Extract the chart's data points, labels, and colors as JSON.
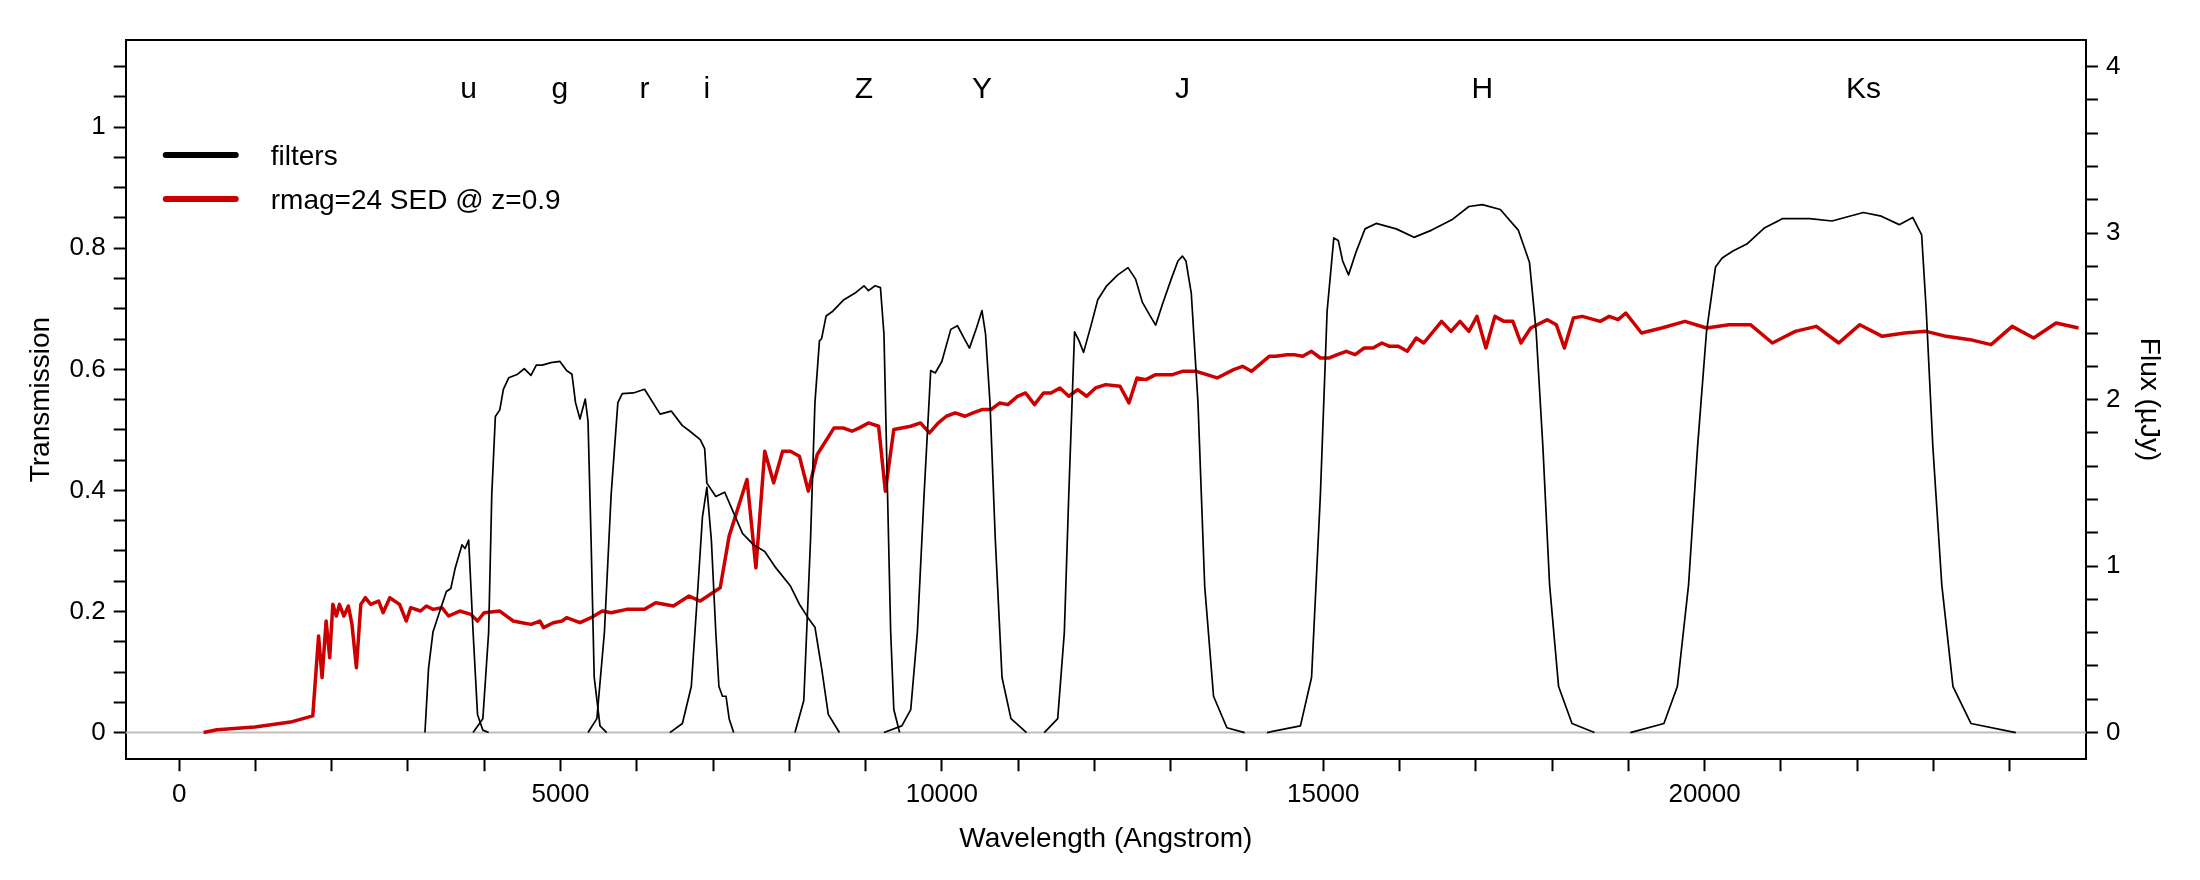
{
  "chart_data": {
    "type": "line",
    "xlabel": "Wavelength (Angstrom)",
    "ylabel": "Transmission",
    "y2label": "Flux (µJy)",
    "xlim": [
      -700,
      25000
    ],
    "xticks": [
      0,
      {
        "value": 1000,
        "label": null
      },
      {
        "value": 2000,
        "label": null
      },
      {
        "value": 3000,
        "label": null
      },
      {
        "value": 4000,
        "label": null
      },
      5000,
      {
        "value": 6000,
        "label": null
      },
      {
        "value": 7000,
        "label": null
      },
      {
        "value": 8000,
        "label": null
      },
      {
        "value": 9000,
        "label": null
      },
      10000,
      {
        "value": 11000,
        "label": null
      },
      {
        "value": 12000,
        "label": null
      },
      {
        "value": 13000,
        "label": null
      },
      {
        "value": 14000,
        "label": null
      },
      15000,
      {
        "value": 16000,
        "label": null
      },
      {
        "value": 17000,
        "label": null
      },
      {
        "value": 18000,
        "label": null
      },
      {
        "value": 19000,
        "label": null
      },
      20000,
      {
        "value": 21000,
        "label": null
      },
      {
        "value": 22000,
        "label": null
      },
      {
        "value": 23000,
        "label": null
      },
      {
        "value": 24000,
        "label": null
      }
    ],
    "ylim": [
      -0.044,
      1.144
    ],
    "yticks": [
      0,
      {
        "value": 0.05,
        "label": null
      },
      {
        "value": 0.1,
        "label": null
      },
      {
        "value": 0.15,
        "label": null
      },
      0.2,
      {
        "value": 0.25,
        "label": null
      },
      {
        "value": 0.3,
        "label": null
      },
      {
        "value": 0.35,
        "label": null
      },
      0.4,
      {
        "value": 0.45,
        "label": null
      },
      {
        "value": 0.5,
        "label": null
      },
      {
        "value": 0.55,
        "label": null
      },
      0.6,
      {
        "value": 0.65,
        "label": null
      },
      {
        "value": 0.7,
        "label": null
      },
      {
        "value": 0.75,
        "label": null
      },
      0.8,
      {
        "value": 0.85,
        "label": null
      },
      {
        "value": 0.9,
        "label": null
      },
      {
        "value": 0.95,
        "label": null
      },
      1,
      {
        "value": 1.05,
        "label": null
      },
      {
        "value": 1.1,
        "label": null
      }
    ],
    "y2lim": [
      -0.16,
      4.16
    ],
    "y2ticks": [
      0,
      {
        "value": 0.2,
        "label": null
      },
      {
        "value": 0.4,
        "label": null
      },
      {
        "value": 0.6,
        "label": null
      },
      {
        "value": 0.8,
        "label": null
      },
      1,
      {
        "value": 1.2,
        "label": null
      },
      {
        "value": 1.4,
        "label": null
      },
      {
        "value": 1.6,
        "label": null
      },
      {
        "value": 1.8,
        "label": null
      },
      2,
      {
        "value": 2.2,
        "label": null
      },
      {
        "value": 2.4,
        "label": null
      },
      {
        "value": 2.6,
        "label": null
      },
      {
        "value": 2.8,
        "label": null
      },
      3,
      {
        "value": 3.2,
        "label": null
      },
      {
        "value": 3.4,
        "label": null
      },
      {
        "value": 3.6,
        "label": null
      },
      {
        "value": 3.8,
        "label": null
      },
      4
    ],
    "legend": "top left",
    "ref_lines": [
      {
        "axis": "y",
        "value": 0,
        "color": "#bebebe"
      }
    ],
    "annotations": [
      "u",
      "g",
      "r",
      "i",
      "Z",
      "Y",
      "J",
      "H",
      "Ks"
    ],
    "series": [
      {
        "name": "filters",
        "color": "#000000",
        "x": [
          3223,
          3270,
          3328,
          3416,
          3504,
          3562,
          3620,
          3708,
          3749,
          3796,
          3854,
          3912,
          3982,
          4058
        ],
        "values": [
          0,
          0.106,
          0.166,
          0.2,
          0.233,
          0.238,
          0.272,
          0.31,
          0.304,
          0.318,
          0.166,
          0.03,
          0.004,
          0
        ]
      },
      {
        "color": "#000000",
        "x": [
          3854,
          3982,
          4058,
          4099,
          4146,
          4204,
          4251,
          4321,
          4438,
          4525,
          4613,
          4683,
          4759,
          4876,
          4993,
          5080,
          5150,
          5197,
          5255,
          5325,
          5361,
          5401,
          5442,
          5518,
          5606
        ],
        "values": [
          0,
          0.023,
          0.166,
          0.393,
          0.522,
          0.533,
          0.567,
          0.586,
          0.592,
          0.601,
          0.59,
          0.607,
          0.607,
          0.611,
          0.613,
          0.598,
          0.592,
          0.545,
          0.518,
          0.551,
          0.514,
          0.318,
          0.091,
          0.011,
          0
        ]
      },
      {
        "color": "#000000",
        "x": [
          5361,
          5477,
          5576,
          5664,
          5752,
          5810,
          5956,
          6102,
          6306,
          6452,
          6598,
          6685,
          6832,
          6890,
          6919,
          7036,
          7153,
          7270,
          7386,
          7532,
          7678,
          7824,
          8015,
          8132,
          8249,
          8336,
          8424,
          8511,
          8657
        ],
        "values": [
          0,
          0.023,
          0.166,
          0.393,
          0.545,
          0.56,
          0.561,
          0.567,
          0.526,
          0.531,
          0.507,
          0.499,
          0.484,
          0.469,
          0.412,
          0.39,
          0.397,
          0.363,
          0.329,
          0.31,
          0.299,
          0.272,
          0.242,
          0.212,
          0.189,
          0.174,
          0.106,
          0.03,
          0
        ]
      },
      {
        "color": "#000000",
        "x": [
          6434,
          6598,
          6715,
          6803,
          6861,
          6919,
          6978,
          7036,
          7077,
          7124,
          7170,
          7211,
          7270
        ],
        "values": [
          0,
          0.015,
          0.076,
          0.242,
          0.356,
          0.405,
          0.318,
          0.166,
          0.076,
          0.06,
          0.06,
          0.023,
          0
        ]
      },
      {
        "color": "#000000",
        "x": [
          8074,
          8190,
          8278,
          8336,
          8395,
          8424,
          8482,
          8570,
          8716,
          8862,
          8979,
          9037,
          9125,
          9195,
          9241,
          9288,
          9329,
          9370,
          9446
        ],
        "values": [
          0,
          0.053,
          0.318,
          0.545,
          0.647,
          0.651,
          0.688,
          0.696,
          0.715,
          0.726,
          0.738,
          0.73,
          0.738,
          0.735,
          0.658,
          0.393,
          0.166,
          0.038,
          0
        ]
      },
      {
        "color": "#000000",
        "x": [
          9241,
          9475,
          9592,
          9679,
          9767,
          9854,
          9913,
          10000,
          10117,
          10205,
          10292,
          10362,
          10456,
          10526,
          10573,
          10631,
          10701,
          10789,
          10906,
          11110
        ],
        "values": [
          0,
          0.011,
          0.038,
          0.166,
          0.393,
          0.598,
          0.594,
          0.613,
          0.666,
          0.672,
          0.651,
          0.635,
          0.669,
          0.697,
          0.658,
          0.545,
          0.318,
          0.091,
          0.023,
          0
        ]
      },
      {
        "color": "#000000",
        "x": [
          11343,
          11519,
          11606,
          11664,
          11740,
          11799,
          11858,
          11957,
          12044,
          12161,
          12307,
          12441,
          12540,
          12628,
          12733,
          12803,
          12891,
          13007,
          13095,
          13154,
          13200,
          13270,
          13358,
          13446,
          13562,
          13737,
          13970
        ],
        "values": [
          0,
          0.023,
          0.166,
          0.393,
          0.662,
          0.647,
          0.628,
          0.673,
          0.715,
          0.738,
          0.756,
          0.768,
          0.749,
          0.711,
          0.688,
          0.673,
          0.707,
          0.749,
          0.779,
          0.787,
          0.779,
          0.726,
          0.545,
          0.242,
          0.06,
          0.008,
          0
        ]
      },
      {
        "color": "#000000",
        "x": [
          14263,
          14701,
          14847,
          14963,
          15051,
          15139,
          15197,
          15255,
          15332,
          15431,
          15548,
          15694,
          15957,
          16190,
          16423,
          16686,
          16910,
          17086,
          17322,
          17557,
          17704,
          17792,
          17880,
          17968,
          18086,
          18262,
          18556
        ],
        "values": [
          0,
          0.011,
          0.091,
          0.393,
          0.696,
          0.817,
          0.813,
          0.779,
          0.756,
          0.794,
          0.832,
          0.841,
          0.832,
          0.818,
          0.83,
          0.847,
          0.869,
          0.872,
          0.864,
          0.83,
          0.777,
          0.662,
          0.472,
          0.244,
          0.076,
          0.015,
          0
        ]
      },
      {
        "color": "#000000",
        "x": [
          19026,
          19467,
          19643,
          19790,
          19908,
          20025,
          20143,
          20231,
          20378,
          20554,
          20789,
          21024,
          21377,
          21671,
          22082,
          22317,
          22552,
          22729,
          22846,
          22905,
          22993,
          23110,
          23257,
          23492,
          24080
        ],
        "values": [
          0,
          0.015,
          0.076,
          0.244,
          0.472,
          0.662,
          0.769,
          0.784,
          0.796,
          0.807,
          0.834,
          0.849,
          0.849,
          0.845,
          0.859,
          0.853,
          0.839,
          0.851,
          0.822,
          0.7,
          0.472,
          0.244,
          0.076,
          0.015,
          0
        ]
      },
      {
        "name": "rmag=24 SED @ z=0.9",
        "color": "#cc0000",
        "axis": "y2",
        "x": [
          321,
          496,
          993,
          1460,
          1752,
          1828,
          1874,
          1927,
          1974,
          2015,
          2061,
          2102,
          2160,
          2219,
          2266,
          2324,
          2382,
          2441,
          2511,
          2616,
          2674,
          2762,
          2890,
          2978,
          3036,
          3165,
          3241,
          3328,
          3445,
          3533,
          3679,
          3825,
          3912,
          4000,
          4204,
          4379,
          4496,
          4613,
          4730,
          4777,
          4905,
          5022,
          5080,
          5255,
          5401,
          5547,
          5664,
          5868,
          6102,
          6248,
          6481,
          6685,
          6832,
          7094,
          7211,
          7445,
          7562,
          7678,
          7795,
          7912,
          8015,
          8132,
          8249,
          8366,
          8587,
          8704,
          8821,
          8920,
          9037,
          9171,
          9259,
          9370,
          9592,
          9720,
          9837,
          9954,
          10059,
          10176,
          10304,
          10409,
          10526,
          10643,
          10760,
          10865,
          10993,
          11098,
          11215,
          11332,
          11431,
          11548,
          11665,
          11781,
          11898,
          12015,
          12149,
          12336,
          12453,
          12558,
          12675,
          12803,
          13025,
          13153,
          13329,
          13475,
          13609,
          13825,
          13942,
          14059,
          14292,
          14380,
          14526,
          14613,
          14730,
          14847,
          14963,
          15080,
          15185,
          15302,
          15419,
          15536,
          15653,
          15770,
          15869,
          15985,
          16102,
          16219,
          16318,
          16552,
          16675,
          16793,
          16910,
          17016,
          17133,
          17251,
          17369,
          17486,
          17592,
          17721,
          17939,
          18056,
          18162,
          18280,
          18397,
          18632,
          18750,
          18867,
          18967,
          19173,
          19437,
          19743,
          20025,
          20319,
          20601,
          20889,
          21189,
          21465,
          21759,
          22035,
          22329,
          22623,
          22905,
          23170,
          23481,
          23757,
          24033,
          24315,
          24609,
          24903
        ],
        "values": [
          0,
          0.017,
          0.033,
          0.063,
          0.1,
          0.58,
          0.33,
          0.67,
          0.45,
          0.77,
          0.7,
          0.77,
          0.7,
          0.76,
          0.65,
          0.39,
          0.77,
          0.81,
          0.77,
          0.79,
          0.72,
          0.81,
          0.77,
          0.67,
          0.75,
          0.73,
          0.76,
          0.74,
          0.75,
          0.7,
          0.73,
          0.71,
          0.67,
          0.72,
          0.73,
          0.67,
          0.66,
          0.65,
          0.67,
          0.63,
          0.66,
          0.67,
          0.69,
          0.66,
          0.69,
          0.73,
          0.72,
          0.74,
          0.74,
          0.78,
          0.76,
          0.82,
          0.79,
          0.87,
          1.18,
          1.52,
          0.99,
          1.69,
          1.5,
          1.69,
          1.69,
          1.66,
          1.45,
          1.67,
          1.83,
          1.83,
          1.81,
          1.83,
          1.86,
          1.84,
          1.45,
          1.82,
          1.84,
          1.86,
          1.8,
          1.86,
          1.9,
          1.92,
          1.9,
          1.92,
          1.94,
          1.94,
          1.98,
          1.97,
          2.02,
          2.04,
          1.97,
          2.04,
          2.04,
          2.07,
          2.02,
          2.06,
          2.02,
          2.07,
          2.09,
          2.08,
          1.98,
          2.13,
          2.12,
          2.15,
          2.15,
          2.17,
          2.17,
          2.15,
          2.13,
          2.18,
          2.2,
          2.17,
          2.26,
          2.26,
          2.27,
          2.27,
          2.26,
          2.29,
          2.25,
          2.25,
          2.27,
          2.29,
          2.27,
          2.31,
          2.31,
          2.34,
          2.32,
          2.32,
          2.29,
          2.37,
          2.34,
          2.47,
          2.41,
          2.47,
          2.41,
          2.5,
          2.31,
          2.5,
          2.47,
          2.47,
          2.34,
          2.43,
          2.48,
          2.45,
          2.31,
          2.49,
          2.5,
          2.47,
          2.5,
          2.48,
          2.52,
          2.4,
          2.43,
          2.47,
          2.43,
          2.45,
          2.45,
          2.34,
          2.41,
          2.44,
          2.34,
          2.45,
          2.38,
          2.4,
          2.41,
          2.38,
          2.36,
          2.33,
          2.44,
          2.37,
          2.46,
          2.43
        ]
      }
    ]
  }
}
